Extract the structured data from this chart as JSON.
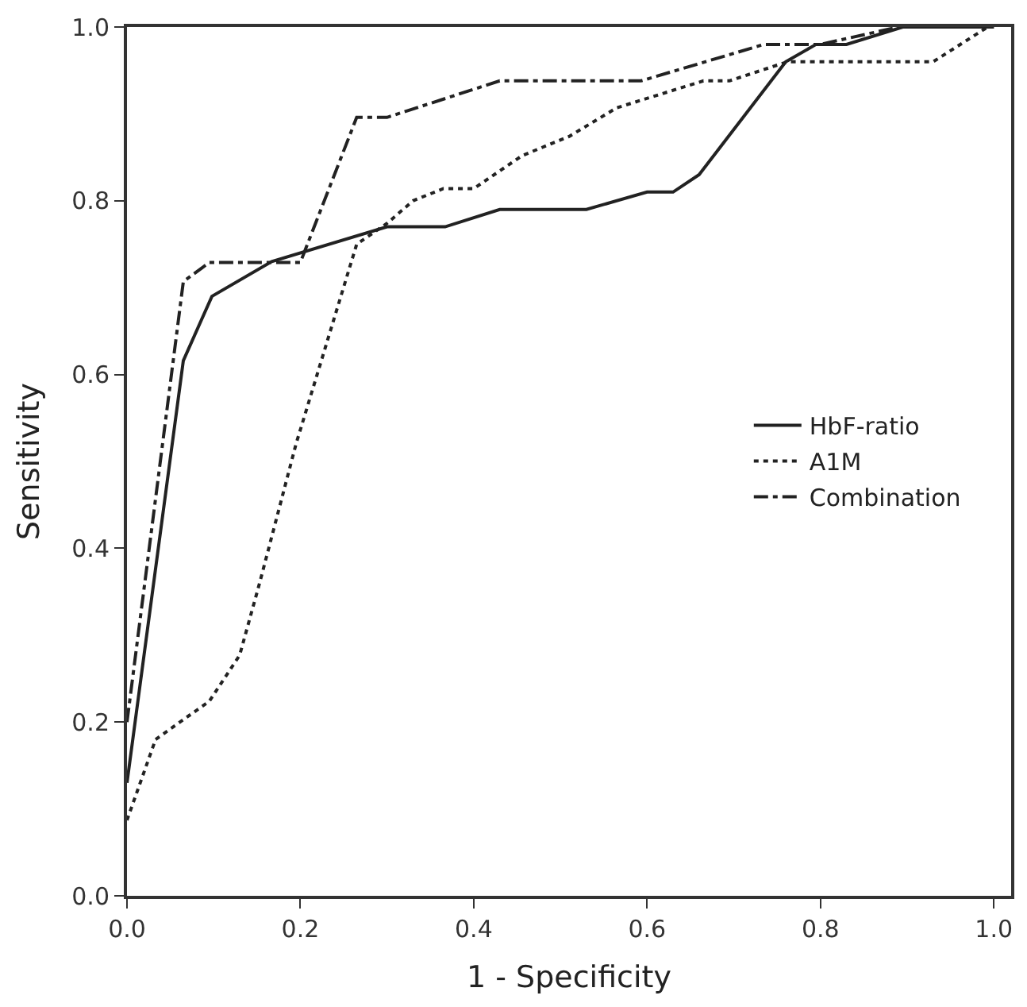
{
  "chart_data": {
    "type": "line",
    "xlabel": "1 - Specificity",
    "ylabel": "Sensitivity",
    "xlim": [
      0,
      1.02
    ],
    "ylim": [
      0,
      1.0
    ],
    "xticks": [
      {
        "value": 0,
        "label": "0.0"
      },
      {
        "value": 0.2,
        "label": "0.2"
      },
      {
        "value": 0.4,
        "label": "0.4"
      },
      {
        "value": 0.6,
        "label": "0.6"
      },
      {
        "value": 0.8,
        "label": "0.8"
      },
      {
        "value": 1.0,
        "label": "1.0"
      }
    ],
    "yticks": [
      {
        "value": 0,
        "label": "0.0"
      },
      {
        "value": 0.2,
        "label": "0.2"
      },
      {
        "value": 0.4,
        "label": "0.4"
      },
      {
        "value": 0.6,
        "label": "0.6"
      },
      {
        "value": 0.8,
        "label": "0.8"
      },
      {
        "value": 1.0,
        "label": "1.0"
      }
    ],
    "legend": "right",
    "marker": "none",
    "series": [
      {
        "name": "HbF-ratio",
        "color": "#222222",
        "line_style": "solid",
        "x": [
          0,
          0.065,
          0.098,
          0.167,
          0.3,
          0.367,
          0.43,
          0.53,
          0.6,
          0.63,
          0.66,
          0.76,
          0.795,
          0.83,
          0.895,
          1.0
        ],
        "values": [
          0.13,
          0.616,
          0.69,
          0.73,
          0.77,
          0.77,
          0.79,
          0.79,
          0.81,
          0.81,
          0.83,
          0.96,
          0.98,
          0.98,
          1.0,
          1.0
        ]
      },
      {
        "name": "A1M",
        "color": "#222222",
        "line_style": "dotted",
        "x": [
          0,
          0.033,
          0.095,
          0.13,
          0.153,
          0.195,
          0.265,
          0.3,
          0.33,
          0.365,
          0.4,
          0.456,
          0.51,
          0.565,
          0.665,
          0.695,
          0.762,
          0.93,
          0.993,
          1.0
        ],
        "values": [
          0.087,
          0.18,
          0.224,
          0.277,
          0.36,
          0.52,
          0.75,
          0.774,
          0.8,
          0.814,
          0.814,
          0.852,
          0.874,
          0.907,
          0.938,
          0.938,
          0.96,
          0.96,
          1.0,
          1.0
        ]
      },
      {
        "name": "Combination",
        "color": "#222222",
        "line_style": "dashdot",
        "x": [
          0,
          0.065,
          0.095,
          0.2,
          0.265,
          0.3,
          0.43,
          0.593,
          0.735,
          0.8,
          0.89,
          1.0
        ],
        "values": [
          0.2,
          0.707,
          0.729,
          0.729,
          0.896,
          0.896,
          0.938,
          0.938,
          0.98,
          0.98,
          1.0,
          1.0
        ]
      }
    ]
  }
}
